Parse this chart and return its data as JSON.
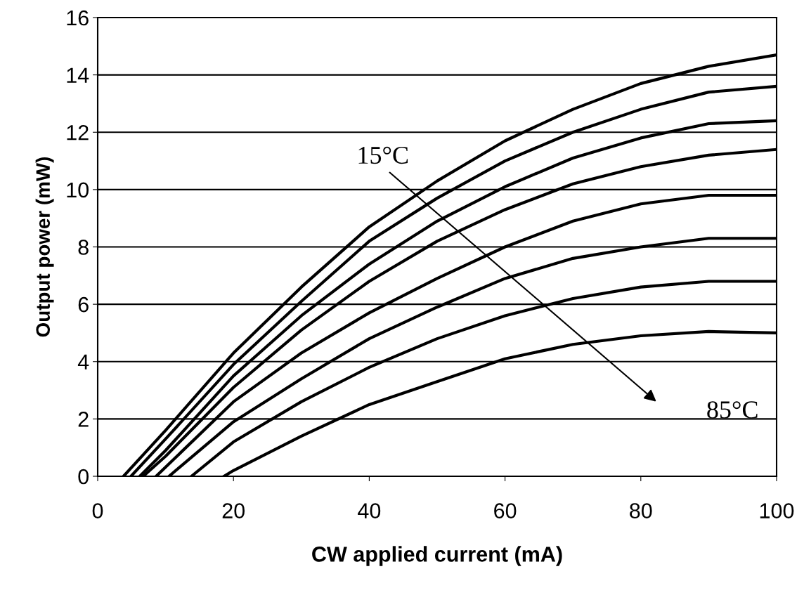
{
  "chart_data": {
    "type": "line",
    "xlabel": "CW applied current (mA)",
    "ylabel": "Output power (mW)",
    "xlim": [
      0,
      100
    ],
    "ylim": [
      0,
      16
    ],
    "xticks": [
      0,
      20,
      40,
      60,
      80,
      100
    ],
    "yticks": [
      0,
      2,
      4,
      6,
      8,
      10,
      12,
      14,
      16
    ],
    "grid": "y",
    "legend": false,
    "marker": "none",
    "line_style": "solid",
    "series": [
      {
        "color": "#000000",
        "x": [
          3.8,
          10,
          20,
          30,
          40,
          50,
          60,
          70,
          80,
          90,
          100
        ],
        "values": [
          0,
          1.6,
          4.3,
          6.6,
          8.7,
          10.3,
          11.7,
          12.8,
          13.7,
          14.3,
          14.7
        ]
      },
      {
        "color": "#000000",
        "x": [
          4.9,
          10,
          20,
          30,
          40,
          50,
          60,
          70,
          80,
          90,
          100
        ],
        "values": [
          0,
          1.3,
          3.9,
          6.1,
          8.2,
          9.7,
          11.0,
          12.0,
          12.8,
          13.4,
          13.6
        ]
      },
      {
        "color": "#000000",
        "x": [
          6.2,
          10,
          20,
          30,
          40,
          50,
          60,
          70,
          80,
          90,
          100
        ],
        "values": [
          0,
          0.9,
          3.5,
          5.6,
          7.4,
          8.9,
          10.1,
          11.1,
          11.8,
          12.3,
          12.4
        ]
      },
      {
        "color": "#000000",
        "x": [
          6.7,
          10,
          20,
          30,
          40,
          50,
          60,
          70,
          80,
          90,
          100
        ],
        "values": [
          0,
          0.7,
          3.1,
          5.1,
          6.8,
          8.2,
          9.3,
          10.2,
          10.8,
          11.2,
          11.4
        ]
      },
      {
        "color": "#000000",
        "x": [
          8.6,
          20,
          30,
          40,
          50,
          60,
          70,
          80,
          90,
          100
        ],
        "values": [
          0,
          2.6,
          4.3,
          5.7,
          6.9,
          8.0,
          8.9,
          9.5,
          9.8,
          9.8
        ]
      },
      {
        "color": "#000000",
        "x": [
          10.5,
          20,
          30,
          40,
          50,
          60,
          70,
          80,
          90,
          100
        ],
        "values": [
          0,
          1.9,
          3.4,
          4.8,
          5.9,
          6.9,
          7.6,
          8.0,
          8.3,
          8.3
        ]
      },
      {
        "color": "#000000",
        "x": [
          13.8,
          20,
          30,
          40,
          50,
          60,
          70,
          80,
          90,
          100
        ],
        "values": [
          0,
          1.2,
          2.6,
          3.8,
          4.8,
          5.6,
          6.2,
          6.6,
          6.8,
          6.8
        ]
      },
      {
        "color": "#000000",
        "x": [
          18.6,
          20,
          30,
          40,
          50,
          60,
          70,
          80,
          90,
          100
        ],
        "values": [
          0,
          0.2,
          1.4,
          2.5,
          3.3,
          4.1,
          4.6,
          4.9,
          5.05,
          5.0
        ]
      }
    ],
    "annotations": [
      "15°C",
      "85°C"
    ]
  }
}
